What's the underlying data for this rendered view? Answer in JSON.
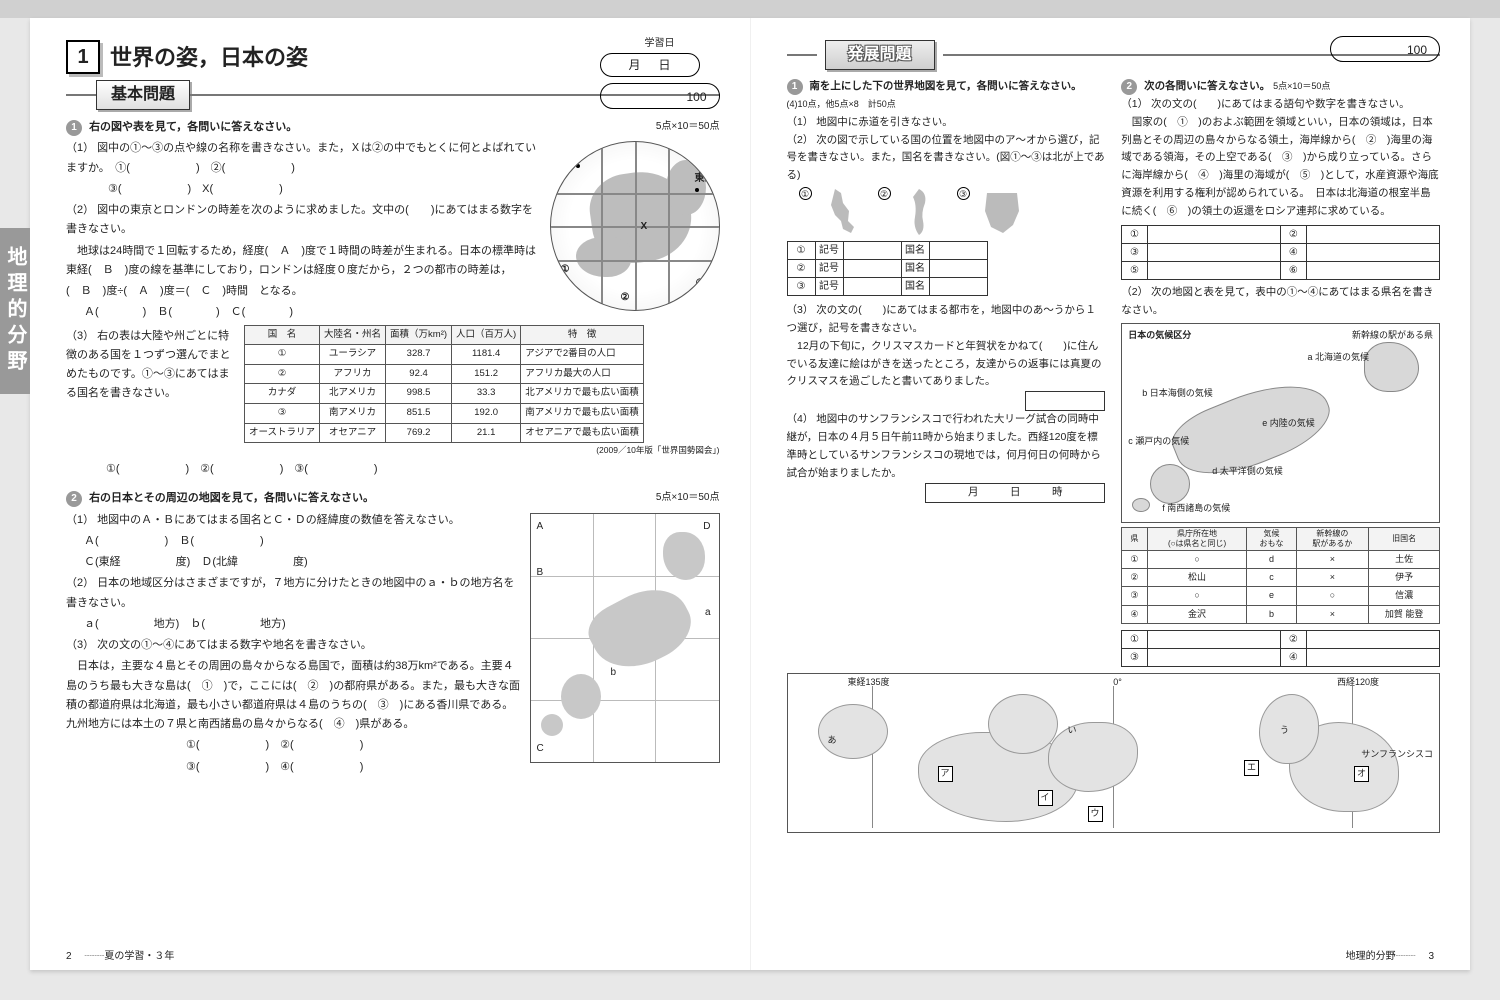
{
  "side_tab": "地理的分野",
  "left": {
    "unit_num": "1",
    "unit_title": "世界の姿，日本の姿",
    "study_label": "学習日",
    "date_m": "月",
    "date_d": "日",
    "score": "100",
    "section_title": "基本問題",
    "q1": {
      "lead": "右の図や表を見て，各問いに答えなさい。",
      "points": "5点×10＝50点",
      "s1": "（1） 図中の①～③の点や線の名称を書きなさい。また，Ｘは②の中でもとくに何とよばれていますか。　①(　　　　　　)　②(　　　　　　)",
      "s1b": "③(　　　　　　)　X(　　　　　　)",
      "s2a": "（2） 図中の東京とロンドンの時差を次のように求めました。文中の(　　)にあてはまる数字を書きなさい。",
      "s2b": "　地球は24時間で１回転するため，経度(　Ａ　)度で１時間の時差が生まれる。日本の標準時は東経(　Ｂ　)度の線を基準にしており，ロンドンは経度０度だから，２つの都市の時差は，",
      "s2c": "(　Ｂ　)度÷(　Ａ　)度＝(　Ｃ　)時間　となる。",
      "s2d": "Ａ(　　　　)　Ｂ(　　　　)　Ｃ(　　　　)",
      "s3": "（3） 右の表は大陸や州ごとに特徴のある国を１つずつ選んでまとめたものです。①～③にあてはまる国名を書きなさい。",
      "s3ans": "①(　　　　　　)　②(　　　　　　)　③(　　　　　　)",
      "globe": {
        "tokyo": "東京",
        "london": "ロンドン",
        "x": "X",
        "c1": "①",
        "c2": "②",
        "c3": "③"
      },
      "table": {
        "headers": [
          "国　名",
          "大陸名・州名",
          "面積（万km²)",
          "人口（百万人)",
          "特　徴"
        ],
        "rows": [
          [
            "①",
            "ユーラシア",
            "328.7",
            "1181.4",
            "アジアで2番目の人口"
          ],
          [
            "②",
            "アフリカ",
            "92.4",
            "151.2",
            "アフリカ最大の人口"
          ],
          [
            "カナダ",
            "北アメリカ",
            "998.5",
            "33.3",
            "北アメリカで最も広い面積"
          ],
          [
            "③",
            "南アメリカ",
            "851.5",
            "192.0",
            "南アメリカで最も広い面積"
          ],
          [
            "オーストラリア",
            "オセアニア",
            "769.2",
            "21.1",
            "オセアニアで最も広い面積"
          ]
        ],
        "src": "(2009／10年版「世界国勢図会」)"
      }
    },
    "q2": {
      "lead": "右の日本とその周辺の地図を見て，各問いに答えなさい。",
      "points": "5点×10＝50点",
      "s1": "（1） 地図中のＡ・Ｂにあてはまる国名とＣ・Ｄの経緯度の数値を答えなさい。",
      "s1a": "Ａ(　　　　　　)　Ｂ(　　　　　　)",
      "s1b": "Ｃ(東経　　　　　度)　Ｄ(北緯　　　　　度)",
      "s2": "（2） 日本の地域区分はさまざまですが，７地方に分けたときの地図中のａ・ｂの地方名を書きなさい。",
      "s2a": "ａ(　　　　　地方)　ｂ(　　　　　地方)",
      "s3a": "（3） 次の文の①～④にあてはまる数字や地名を書きなさい。",
      "s3b": "　日本は，主要な４島とその周囲の島々からなる島国で，面積は約38万km²である。主要４島のうち最も大きな島は(　①　)で，ここには(　②　)の都府県がある。また，最も大きな面積の都道府県は北海道，最も小さい都道府県は４島のうちの(　③　)にある香川県である。九州地方には本土の７県と南西諸島の島々からなる(　④　)県がある。",
      "s3ans1": "①(　　　　　　)　②(　　　　　　)",
      "s3ans2": "③(　　　　　　)　④(　　　　　　)",
      "map": {
        "A": "A",
        "B": "B",
        "C": "C",
        "D": "D",
        "a": "a",
        "b": "b"
      }
    },
    "footer_page": "2",
    "footer_txt": "夏の学習・３年"
  },
  "right": {
    "section_title": "発展問題",
    "score": "100",
    "q1": {
      "lead": "南を上にした下の世界地図を見て，各問いに答えなさい。",
      "points": "(4)10点，他5点×8　計50点",
      "s1": "（1） 地図中に赤道を引きなさい。",
      "s2": "（2） 次の図で示している国の位置を地図中のア～オから選び，記号を書きなさい。また，国名を書きなさい。(図①～③は北が上である)",
      "s2lbl": [
        "①",
        "②",
        "③"
      ],
      "ansHdr": [
        "記号",
        "国名"
      ],
      "s3": "（3） 次の文の(　　)にあてはまる都市を，地図中のあ～うから１つ選び，記号を書きなさい。",
      "s3b": "　12月の下旬に，クリスマスカードと年賀状をかねて(　　)に住んでいる友達に絵はがきを送ったところ，友達からの返事には真夏のクリスマスを過ごしたと書いてありました。",
      "s4": "（4） 地図中のサンフランシスコで行われた大リーグ試合の同時中継が，日本の４月５日午前11時から始まりました。西経120度を標準時としているサンフランシスコの現地では，何月何日の何時から試合が始まりましたか。",
      "s4ans": "月　　　日　　　時",
      "map": {
        "lon1": "東経135度",
        "lon2": "0°",
        "lon3": "西経120度",
        "a": "ア",
        "i": "イ",
        "u": "ウ",
        "e": "エ",
        "o": "オ",
        "aa": "あ",
        "ii": "い",
        "uu": "う",
        "sf": "サンフランシスコ"
      }
    },
    "q2": {
      "lead": "次の各問いに答えなさい。",
      "points": "5点×10＝50点",
      "s1": "（1） 次の文の(　　)にあてはまる語句や数字を書きなさい。",
      "body": "　国家の(　①　)のおよぶ範囲を領域といい，日本の領域は，日本列島とその周辺の島々からなる領土，海岸線から(　②　)海里の海域である領海，その上空である(　③　)から成り立っている。さらに海岸線から(　④　)海里の海域が(　⑤　)として，水産資源や海底資源を利用する権利が認められている。　日本は北海道の根室半島に続く(　⑥　)の領土の返還をロシア連邦に求めている。",
      "ans_nums": [
        "①",
        "②",
        "③",
        "④",
        "⑤",
        "⑥"
      ],
      "s2": "（2） 次の地図と表を見て，表中の①～④にあてはまる県名を書きなさい。",
      "climate_title": "日本の気候区分",
      "shinkansen": "新幹線の駅がある県",
      "labels": {
        "a": "a 北海道の気候",
        "b": "b 日本海側の気候",
        "c": "c 瀬戸内の気候",
        "d": "d 太平洋側の気候",
        "e": "e 内陸の気候",
        "f": "f 南西諸島の気候"
      },
      "table": {
        "headers": [
          "県",
          "県庁所在地\n(○は県名と同じ)",
          "気候\nおもな",
          "新幹線の\n駅があるか",
          "旧国名"
        ],
        "rows": [
          [
            "①",
            "○",
            "d",
            "×",
            "土佐"
          ],
          [
            "②",
            "松山",
            "c",
            "×",
            "伊予"
          ],
          [
            "③",
            "○",
            "e",
            "○",
            "信濃"
          ],
          [
            "④",
            "金沢",
            "b",
            "×",
            "加賀 能登"
          ]
        ]
      },
      "ans2": [
        "①",
        "②",
        "③",
        "④"
      ]
    },
    "footer_txt": "地理的分野",
    "footer_page": "3"
  }
}
